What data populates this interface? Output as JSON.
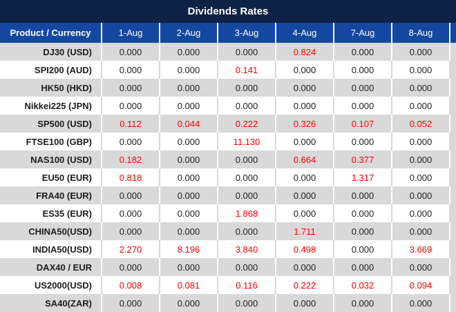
{
  "title": "Dividends Rates",
  "header": {
    "product_label": "Product / Currency",
    "dates": [
      "1-Aug",
      "2-Aug",
      "3-Aug",
      "4-Aug",
      "7-Aug",
      "8-Aug"
    ]
  },
  "colors": {
    "title_bar": "#0d2244",
    "header_bg": "#1447a0",
    "row_gray": "#d9d9d9",
    "row_white": "#ffffff",
    "text_dark": "#1c1c1c",
    "value_red": "#fe0000"
  },
  "chart_data": {
    "type": "table",
    "title": "Dividends Rates",
    "columns": [
      "Product / Currency",
      "1-Aug",
      "2-Aug",
      "3-Aug",
      "4-Aug",
      "7-Aug",
      "8-Aug"
    ],
    "note_red_cells": "red_indices lists 0-based positions of values rendered in red",
    "rows": [
      {
        "product": "DJ30 (USD)",
        "values": [
          "0.000",
          "0.000",
          "0.000",
          "0.824",
          "0.000",
          "0.000"
        ],
        "red_indices": [
          3
        ]
      },
      {
        "product": "SPI200 (AUD)",
        "values": [
          "0.000",
          "0.000",
          "0.141",
          "0.000",
          "0.000",
          "0.000"
        ],
        "red_indices": [
          2
        ]
      },
      {
        "product": "HK50 (HKD)",
        "values": [
          "0.000",
          "0.000",
          "0.000",
          "0.000",
          "0.000",
          "0.000"
        ],
        "red_indices": []
      },
      {
        "product": "Nikkei225 (JPN)",
        "values": [
          "0.000",
          "0.000",
          "0.000",
          "0.000",
          "0.000",
          "0.000"
        ],
        "red_indices": []
      },
      {
        "product": "SP500 (USD)",
        "values": [
          "0.112",
          "0.044",
          "0.222",
          "0.326",
          "0.107",
          "0.052"
        ],
        "red_indices": [
          0,
          1,
          2,
          3,
          4,
          5
        ]
      },
      {
        "product": "FTSE100 (GBP)",
        "values": [
          "0.000",
          "0.000",
          "11.130",
          "0.000",
          "0.000",
          "0.000"
        ],
        "red_indices": [
          2
        ]
      },
      {
        "product": "NAS100 (USD)",
        "values": [
          "0.182",
          "0.000",
          "0.000",
          "0.664",
          "0.377",
          "0.000"
        ],
        "red_indices": [
          0,
          3,
          4
        ]
      },
      {
        "product": "EU50 (EUR)",
        "values": [
          "0.818",
          "0.000",
          "0.000",
          "0.000",
          "1.317",
          "0.000"
        ],
        "red_indices": [
          0,
          4
        ]
      },
      {
        "product": "FRA40 (EUR)",
        "values": [
          "0.000",
          "0.000",
          "0.000",
          "0.000",
          "0.000",
          "0.000"
        ],
        "red_indices": []
      },
      {
        "product": "ES35 (EUR)",
        "values": [
          "0.000",
          "0.000",
          "1.868",
          "0.000",
          "0.000",
          "0.000"
        ],
        "red_indices": [
          2
        ]
      },
      {
        "product": "CHINA50(USD)",
        "values": [
          "0.000",
          "0.000",
          "0.000",
          "1.711",
          "0.000",
          "0.000"
        ],
        "red_indices": [
          3
        ]
      },
      {
        "product": "INDIA50(USD)",
        "values": [
          "2.270",
          "8.196",
          "3.840",
          "0.498",
          "0.000",
          "3.669"
        ],
        "red_indices": [
          0,
          1,
          2,
          3,
          5
        ]
      },
      {
        "product": "DAX40 / EUR",
        "values": [
          "0.000",
          "0.000",
          "0.000",
          "0.000",
          "0.000",
          "0.000"
        ],
        "red_indices": []
      },
      {
        "product": "US2000(USD)",
        "values": [
          "0.008",
          "0.081",
          "0.116",
          "0.222",
          "0.032",
          "0.094"
        ],
        "red_indices": [
          0,
          1,
          2,
          3,
          4,
          5
        ]
      },
      {
        "product": "SA40(ZAR)",
        "values": [
          "0.000",
          "0.000",
          "0.000",
          "0.000",
          "0.000",
          "0.000"
        ],
        "red_indices": []
      }
    ]
  }
}
